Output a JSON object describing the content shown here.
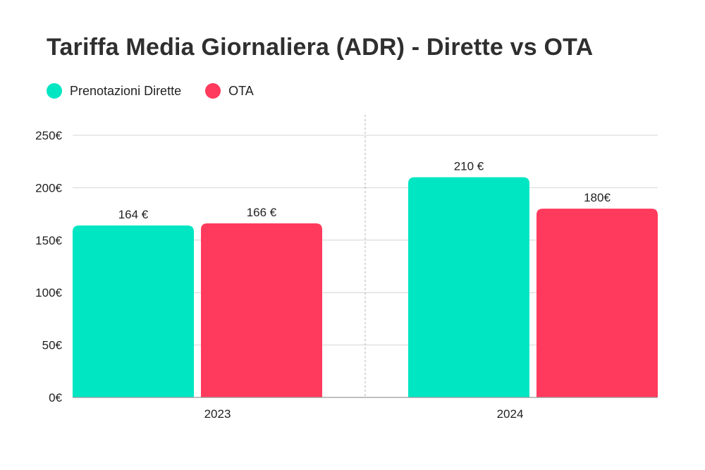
{
  "colors": {
    "direct": "#00E6C3",
    "ota": "#FF3A5C",
    "grid": "#d4d4d4",
    "axis": "#999999"
  },
  "chart_data": {
    "type": "bar",
    "title": "Tariffa Media Giornaliera (ADR) - Dirette vs OTA",
    "categories": [
      "2023",
      "2024"
    ],
    "series": [
      {
        "name": "Prenotazioni Dirette",
        "values": [
          164,
          210
        ],
        "labels": [
          "164 €",
          "210 €"
        ]
      },
      {
        "name": "OTA",
        "values": [
          166,
          180
        ],
        "labels": [
          "166 €",
          "180€"
        ]
      }
    ],
    "ylim": [
      0,
      250
    ],
    "yticks": [
      0,
      50,
      100,
      150,
      200,
      250
    ],
    "ytick_labels": [
      "0€",
      "50€",
      "100€",
      "150€",
      "200€",
      "250€"
    ],
    "grid": true,
    "legend": "top-left"
  }
}
